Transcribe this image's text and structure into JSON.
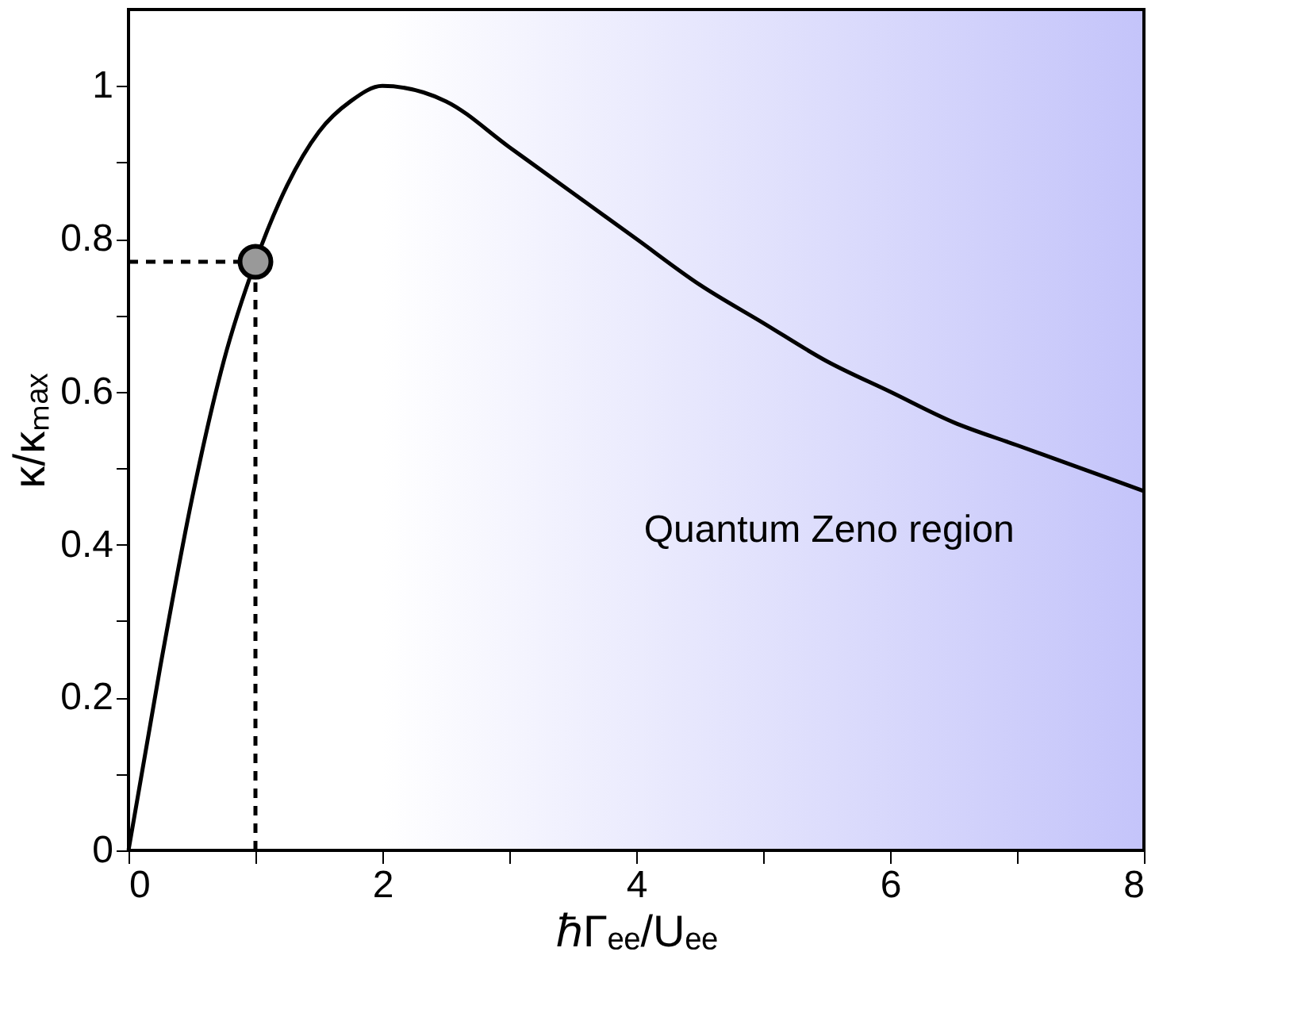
{
  "chart_data": {
    "type": "line",
    "xlabel": "ℏΓₑₑ/Uₑₑ",
    "ylabel": "κ/κₘₐₓ",
    "xlim": [
      0,
      8
    ],
    "ylim": [
      0,
      1.1
    ],
    "xticks": [
      0,
      {
        "value": 1,
        "label": null
      },
      2,
      {
        "value": 3,
        "label": null
      },
      4,
      {
        "value": 5,
        "label": null
      },
      6,
      {
        "value": 7,
        "label": null
      },
      8
    ],
    "yticks": [
      0,
      {
        "value": 0.1,
        "label": null
      },
      0.2,
      {
        "value": 0.3,
        "label": null
      },
      0.4,
      {
        "value": 0.5,
        "label": null
      },
      0.6,
      {
        "value": 0.7,
        "label": null
      },
      0.8,
      {
        "value": 0.9,
        "label": null
      },
      1
    ],
    "grid": false,
    "bands": [
      {
        "axis": "x",
        "from": 2,
        "to": 8,
        "color": "#c4c4fa"
      }
    ],
    "annotations": [
      "Quantum Zeno region"
    ],
    "series": [
      {
        "type": "line",
        "color": "#000000",
        "line_style": "solid",
        "x": [
          0,
          0.25,
          0.5,
          0.75,
          1,
          1.25,
          1.5,
          1.75,
          2,
          2.5,
          3,
          3.5,
          4,
          4.5,
          5,
          5.5,
          6,
          6.5,
          7,
          7.5,
          8
        ],
        "values": [
          0,
          0.24,
          0.46,
          0.64,
          0.77,
          0.87,
          0.94,
          0.98,
          1.0,
          0.98,
          0.92,
          0.86,
          0.8,
          0.74,
          0.69,
          0.64,
          0.6,
          0.56,
          0.53,
          0.5,
          0.47
        ]
      },
      {
        "type": "line",
        "color": "#000000",
        "line_style": "dashed",
        "x": [
          0,
          1
        ],
        "values": [
          0.77,
          0.77
        ]
      },
      {
        "type": "line",
        "color": "#000000",
        "line_style": "dashed",
        "x": [
          1,
          1
        ],
        "values": [
          0,
          0.77
        ]
      },
      {
        "type": "scatter",
        "color": "#999999",
        "marker": "circle",
        "x": [
          1
        ],
        "values": [
          0.77
        ]
      }
    ]
  }
}
